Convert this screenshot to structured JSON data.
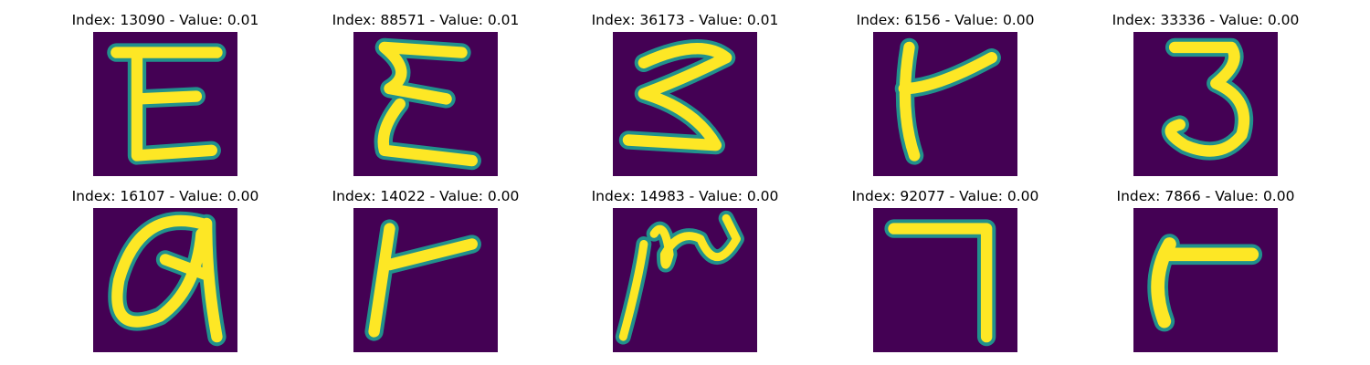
{
  "figure": {
    "background_color": "#ffffff",
    "colormap": "viridis",
    "colors": {
      "background": "#440154",
      "mid": "#21918c",
      "stroke": "#fde725"
    }
  },
  "panels": [
    {
      "title": "Index: 13090 - Value: 0.01",
      "glyph": "E-like handwritten character"
    },
    {
      "title": "Index: 88571 - Value: 0.01",
      "glyph": "E / sigma-like handwritten character"
    },
    {
      "title": "Index: 36173 - Value: 0.01",
      "glyph": "sideways m / 3-like handwritten character"
    },
    {
      "title": "Index: 6156 - Value: 0.00",
      "glyph": "t-like handwritten character"
    },
    {
      "title": "Index: 33336 - Value: 0.00",
      "glyph": "3 handwritten digit"
    },
    {
      "title": "Index: 16107 - Value: 0.00",
      "glyph": "a / Q-like handwritten character"
    },
    {
      "title": "Index: 14022 - Value: 0.00",
      "glyph": "r / t-like handwritten character"
    },
    {
      "title": "Index: 14983 - Value: 0.00",
      "glyph": "rotated 2-like handwritten character"
    },
    {
      "title": "Index: 92077 - Value: 0.00",
      "glyph": "7-like handwritten character"
    },
    {
      "title": "Index: 7866 - Value: 0.00",
      "glyph": "r-like handwritten character"
    }
  ]
}
